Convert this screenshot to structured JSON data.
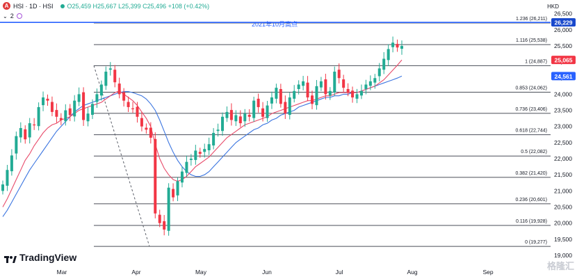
{
  "header": {
    "logo_letter": "A",
    "symbol": "HSI · 1D · HSI",
    "ohlc": "O25,459 H25,667 L25,399 C25,496 +108 (+0.42%)",
    "indicators_count": "2",
    "currency": "HKD"
  },
  "branding": {
    "tradingview": "TradingView",
    "watermark": "格隆汇"
  },
  "colors": {
    "up": "#22ab94",
    "down": "#f23645",
    "ma_fast": "#e84b6a",
    "ma_slow": "#3b75e0",
    "fib": "#4a4e58",
    "accent_line": "#2962ff"
  },
  "chart_data": {
    "type": "candlestick",
    "symbol": "HSI",
    "timeframe": "1D",
    "ylim": [
      19000,
      26500
    ],
    "y_ticks": [
      19000,
      19500,
      20000,
      20500,
      21000,
      21500,
      22000,
      22500,
      23000,
      23500,
      24000,
      24500,
      25000,
      25500,
      26000,
      26500
    ],
    "x_ticks": [
      "Mar",
      "Apr",
      "May",
      "Jun",
      "Jul",
      "Aug",
      "Sep"
    ],
    "price_labels": [
      {
        "value": 26229,
        "label": "26,229",
        "color": "#1848cc"
      },
      {
        "value": 25065,
        "label": "25,065",
        "color": "#f23645"
      },
      {
        "value": 24561,
        "label": "24,561",
        "color": "#2962ff"
      }
    ],
    "resistance": {
      "value": 26229,
      "label": "2021年10月高点"
    },
    "fib_levels": [
      {
        "ratio": "1.236",
        "value": 26211
      },
      {
        "ratio": "1.116",
        "value": 25538
      },
      {
        "ratio": "1",
        "value": 24887
      },
      {
        "ratio": "0.853",
        "value": 24062
      },
      {
        "ratio": "0.736",
        "value": 23406
      },
      {
        "ratio": "0.618",
        "value": 22744
      },
      {
        "ratio": "0.5",
        "value": 22082
      },
      {
        "ratio": "0.382",
        "value": 21420
      },
      {
        "ratio": "0.236",
        "value": 20601
      },
      {
        "ratio": "0.116",
        "value": 19928
      },
      {
        "ratio": "0",
        "value": 19277
      }
    ],
    "close_series": [
      21200,
      21650,
      22100,
      22700,
      22950,
      22600,
      23100,
      23050,
      23600,
      23900,
      23800,
      23450,
      23300,
      23200,
      23500,
      23350,
      23800,
      24000,
      23200,
      23400,
      23700,
      24000,
      24300,
      24700,
      24800,
      24370,
      24000,
      23800,
      23600,
      23550,
      23300,
      23000,
      22900,
      22650,
      20300,
      20000,
      19800,
      21100,
      20800,
      21300,
      21600,
      21900,
      22000,
      22250,
      22150,
      22300,
      22450,
      22800,
      22900,
      23300,
      23450,
      23200,
      23350,
      23100,
      23400,
      23300,
      23800,
      23600,
      23300,
      23650,
      23900,
      24200,
      23700,
      23400,
      23900,
      24100,
      24300,
      24400,
      23900,
      23700,
      24250,
      24400,
      24000,
      24100,
      24700,
      24500,
      24200,
      24050,
      23900,
      24000,
      24100,
      24300,
      24400,
      24500,
      24800,
      25100,
      25400,
      25600,
      25450,
      25496
    ],
    "ma_fast": [
      20500,
      20750,
      21050,
      21350,
      21650,
      21950,
      22150,
      22400,
      22600,
      22800,
      22950,
      23050,
      23100,
      23200,
      23250,
      23300,
      23400,
      23500,
      23550,
      23600,
      23650,
      23700,
      23750,
      23850,
      23950,
      24050,
      24100,
      24000,
      23900,
      23800,
      23650,
      23450,
      23250,
      23000,
      22450,
      22000,
      21700,
      21500,
      21350,
      21300,
      21350,
      21450,
      21600,
      21750,
      21850,
      21950,
      22050,
      22200,
      22350,
      22500,
      22650,
      22750,
      22850,
      22950,
      23050,
      23100,
      23150,
      23200,
      23250,
      23300,
      23400,
      23450,
      23500,
      23550,
      23600,
      23650,
      23700,
      23750,
      23800,
      23800,
      23850,
      23900,
      23950,
      23950,
      24000,
      24050,
      24050,
      24050,
      24050,
      24050,
      24100,
      24150,
      24200,
      24250,
      24350,
      24450,
      24600,
      24750,
      24900,
      25065
    ],
    "ma_slow": [
      20200,
      20400,
      20650,
      20900,
      21150,
      21400,
      21650,
      21850,
      22050,
      22250,
      22450,
      22650,
      22850,
      23000,
      23150,
      23300,
      23450,
      23550,
      23650,
      23700,
      23750,
      23800,
      23850,
      23900,
      23950,
      24000,
      24050,
      24080,
      24080,
      24050,
      24000,
      23950,
      23850,
      23700,
      23500,
      23200,
      22850,
      22500,
      22200,
      21950,
      21750,
      21600,
      21500,
      21450,
      21450,
      21500,
      21600,
      21750,
      21900,
      22050,
      22200,
      22350,
      22500,
      22600,
      22700,
      22800,
      22900,
      22950,
      23050,
      23100,
      23200,
      23250,
      23350,
      23400,
      23450,
      23500,
      23600,
      23650,
      23700,
      23750,
      23800,
      23850,
      23900,
      23900,
      23950,
      23950,
      24000,
      24000,
      24050,
      24050,
      24100,
      24150,
      24200,
      24250,
      24300,
      24350,
      24400,
      24450,
      24500,
      24561
    ]
  }
}
